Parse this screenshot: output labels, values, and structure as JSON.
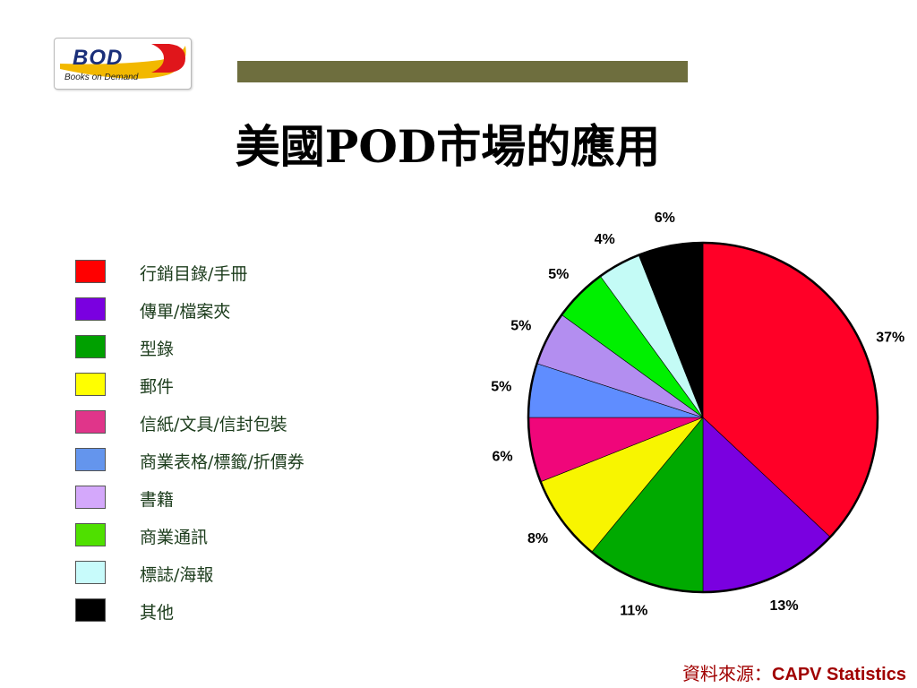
{
  "logo": {
    "wordmark": "BOD",
    "tagline": "Books on Demand",
    "colors": {
      "wordmark": "#1a2f7a",
      "swoosh": "#f2b800",
      "accent": "#e0161b"
    }
  },
  "title": "美國POD市場的應用",
  "colors": {
    "title_bar": "#6e6e3e",
    "legend_text": "#1c3c1c",
    "source_text": "#a00000"
  },
  "chart_data": {
    "type": "pie",
    "title": "",
    "categories": [
      "行銷目錄/手冊",
      "傳單/檔案夾",
      "型錄",
      "郵件",
      "信紙/文具/信封包裝",
      "商業表格/標籤/折價券",
      "書籍",
      "商業通訊",
      "標誌/海報",
      "其他"
    ],
    "values": [
      37,
      13,
      11,
      8,
      6,
      5,
      5,
      5,
      4,
      6
    ],
    "labels": [
      "37%",
      "13%",
      "11%",
      "8%",
      "6%",
      "5%",
      "5%",
      "5%",
      "4%",
      "6%"
    ],
    "slice_colors": [
      "#ff0027",
      "#7a00e0",
      "#00aa00",
      "#f8f500",
      "#f0067a",
      "#5f8dff",
      "#b38ef0",
      "#00f000",
      "#c4fbf6",
      "#000000"
    ],
    "legend_colors": [
      "#ff0000",
      "#7a00e0",
      "#00a000",
      "#ffff00",
      "#e0358a",
      "#6495ed",
      "#d4a8fb",
      "#4fe000",
      "#c8fbfb",
      "#000000"
    ],
    "start": "12 o'clock",
    "direction": "clockwise",
    "legend_position": "left"
  },
  "source": {
    "label": "資料來源：",
    "value": "CAPV Statistics"
  }
}
